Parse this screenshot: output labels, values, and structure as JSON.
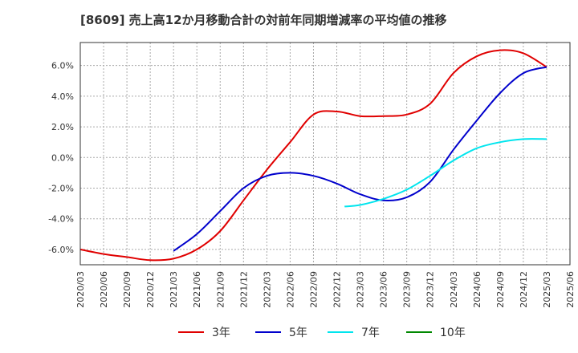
{
  "chart_data": {
    "type": "line",
    "title": "[8609]  売上高12か月移動合計の対前年同期増減率の平均値の推移",
    "xlabel": "",
    "ylabel": "",
    "ylim": [
      -7.0,
      7.5
    ],
    "y_ticks": [
      "6.0%",
      "4.0%",
      "2.0%",
      "0.0%",
      "-2.0%",
      "-4.0%",
      "-6.0%"
    ],
    "y_tick_values": [
      6,
      4,
      2,
      0,
      -2,
      -4,
      -6
    ],
    "x_ticks": [
      "2020/03",
      "2020/06",
      "2020/09",
      "2020/12",
      "2021/03",
      "2021/06",
      "2021/09",
      "2021/12",
      "2022/03",
      "2022/06",
      "2022/09",
      "2022/12",
      "2023/03",
      "2023/06",
      "2023/09",
      "2023/12",
      "2024/03",
      "2024/06",
      "2024/09",
      "2024/12",
      "2025/03",
      "2025/06"
    ],
    "grid": true,
    "legend_position": "bottom",
    "series": [
      {
        "name": "3年",
        "color": "#e00000",
        "x": [
          "2020/03",
          "2020/06",
          "2020/09",
          "2020/12",
          "2021/03",
          "2021/06",
          "2021/09",
          "2021/12",
          "2022/03",
          "2022/06",
          "2022/09",
          "2022/12",
          "2023/03",
          "2023/06",
          "2023/09",
          "2023/12",
          "2024/03",
          "2024/06",
          "2024/09",
          "2024/12",
          "2025/03"
        ],
        "values": [
          -6.0,
          -6.3,
          -6.5,
          -6.7,
          -6.6,
          -6.0,
          -4.8,
          -2.8,
          -0.8,
          1.0,
          2.8,
          3.0,
          2.7,
          2.7,
          2.8,
          3.5,
          5.5,
          6.6,
          7.0,
          6.8,
          5.9
        ]
      },
      {
        "name": "5年",
        "color": "#0000cc",
        "x": [
          "2021/03",
          "2021/06",
          "2021/09",
          "2021/12",
          "2022/03",
          "2022/06",
          "2022/09",
          "2022/12",
          "2023/03",
          "2023/06",
          "2023/09",
          "2023/12",
          "2024/03",
          "2024/06",
          "2024/09",
          "2024/12",
          "2025/03"
        ],
        "values": [
          -6.1,
          -5.0,
          -3.5,
          -2.0,
          -1.2,
          -1.0,
          -1.2,
          -1.7,
          -2.4,
          -2.8,
          -2.6,
          -1.6,
          0.5,
          2.4,
          4.2,
          5.5,
          5.9
        ]
      },
      {
        "name": "7年",
        "color": "#00e5ee",
        "x": [
          "2023/01",
          "2023/03",
          "2023/06",
          "2023/09",
          "2023/12",
          "2024/03",
          "2024/06",
          "2024/09",
          "2024/12",
          "2025/03"
        ],
        "values": [
          -3.2,
          -3.1,
          -2.7,
          -2.1,
          -1.2,
          -0.2,
          0.6,
          1.0,
          1.2,
          1.2
        ]
      },
      {
        "name": "10年",
        "color": "#008800",
        "x": [],
        "values": []
      }
    ]
  }
}
